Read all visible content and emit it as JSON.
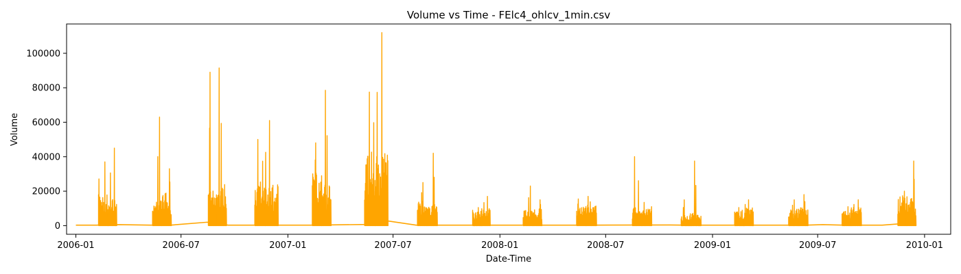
{
  "chart_data": {
    "type": "line",
    "title": "Volume vs Time - FElc4_ohlcv_1min.csv",
    "xlabel": "Date-Time",
    "ylabel": "Volume",
    "x_ticks": [
      "2006-01",
      "2006-07",
      "2007-01",
      "2007-07",
      "2008-01",
      "2008-07",
      "2009-01",
      "2009-07",
      "2010-01"
    ],
    "y_ticks": [
      0,
      20000,
      40000,
      60000,
      80000,
      100000
    ],
    "ylim": [
      -5000,
      117000
    ],
    "xlim": [
      "2005-12-16",
      "2010-02-15"
    ],
    "grid": false,
    "line_color": "#ffa500",
    "series": [
      {
        "baseline": [
          [
            "2006-01-01",
            300
          ],
          [
            "2006-02-05",
            300
          ],
          [
            "2006-03-16",
            600
          ],
          [
            "2006-05-12",
            300
          ],
          [
            "2006-06-13",
            300
          ],
          [
            "2006-08-15",
            2000
          ],
          [
            "2006-09-20",
            300
          ],
          [
            "2006-10-10",
            300
          ],
          [
            "2006-11-15",
            300
          ],
          [
            "2007-02-15",
            300
          ],
          [
            "2007-05-15",
            700
          ],
          [
            "2007-06-20",
            2800
          ],
          [
            "2007-08-10",
            300
          ],
          [
            "2007-09-20",
            300
          ],
          [
            "2008-06-01",
            300
          ],
          [
            "2008-10-20",
            400
          ],
          [
            "2008-11-15",
            300
          ],
          [
            "2009-02-10",
            300
          ],
          [
            "2009-06-10",
            300
          ],
          [
            "2009-07-10",
            600
          ],
          [
            "2009-08-15",
            300
          ],
          [
            "2009-10-20",
            300
          ],
          [
            "2009-11-20",
            1100
          ],
          [
            "2009-12-07",
            300
          ]
        ],
        "bursts": [
          {
            "start": "2006-02-09",
            "end": "2006-02-25",
            "peak": 37000,
            "level": 15000
          },
          {
            "start": "2006-02-25",
            "end": "2006-03-12",
            "peak": 45000,
            "level": 13000
          },
          {
            "start": "2006-05-13",
            "end": "2006-05-28",
            "peak": 63000,
            "level": 12000
          },
          {
            "start": "2006-05-28",
            "end": "2006-06-14",
            "peak": 33000,
            "level": 16000
          },
          {
            "start": "2006-08-17",
            "end": "2006-08-31",
            "peak": 89000,
            "level": 17000
          },
          {
            "start": "2006-09-01",
            "end": "2006-09-17",
            "peak": 91500,
            "level": 20000
          },
          {
            "start": "2006-11-05",
            "end": "2006-11-23",
            "peak": 50000,
            "level": 22000
          },
          {
            "start": "2006-11-23",
            "end": "2006-12-15",
            "peak": 61000,
            "level": 20000
          },
          {
            "start": "2007-02-12",
            "end": "2007-02-28",
            "peak": 48000,
            "level": 26000
          },
          {
            "start": "2007-02-28",
            "end": "2007-03-16",
            "peak": 78500,
            "level": 20000
          },
          {
            "start": "2007-05-13",
            "end": "2007-05-31",
            "peak": 77500,
            "level": 38000
          },
          {
            "start": "2007-05-31",
            "end": "2007-06-22",
            "peak": 112000,
            "level": 35000
          },
          {
            "start": "2007-08-12",
            "end": "2007-08-28",
            "peak": 25000,
            "level": 12000
          },
          {
            "start": "2007-08-28",
            "end": "2007-09-15",
            "peak": 42000,
            "level": 11000
          },
          {
            "start": "2007-11-15",
            "end": "2007-11-30",
            "peak": 10500,
            "level": 7000
          },
          {
            "start": "2007-11-30",
            "end": "2007-12-15",
            "peak": 17000,
            "level": 9000
          },
          {
            "start": "2008-02-10",
            "end": "2008-02-26",
            "peak": 23000,
            "level": 8000
          },
          {
            "start": "2008-02-26",
            "end": "2008-03-13",
            "peak": 15000,
            "level": 9000
          },
          {
            "start": "2008-05-12",
            "end": "2008-05-28",
            "peak": 15500,
            "level": 9000
          },
          {
            "start": "2008-05-28",
            "end": "2008-06-15",
            "peak": 17000,
            "level": 10000
          },
          {
            "start": "2008-08-16",
            "end": "2008-08-31",
            "peak": 40000,
            "level": 9000
          },
          {
            "start": "2008-08-31",
            "end": "2008-09-18",
            "peak": 13500,
            "level": 8000
          },
          {
            "start": "2008-11-08",
            "end": "2008-11-23",
            "peak": 15000,
            "level": 5000
          },
          {
            "start": "2008-11-23",
            "end": "2008-12-12",
            "peak": 37500,
            "level": 6000
          },
          {
            "start": "2009-02-08",
            "end": "2009-02-24",
            "peak": 10500,
            "level": 7000
          },
          {
            "start": "2009-02-24",
            "end": "2009-03-12",
            "peak": 15000,
            "level": 9000
          },
          {
            "start": "2009-05-12",
            "end": "2009-05-29",
            "peak": 15000,
            "level": 8000
          },
          {
            "start": "2009-05-29",
            "end": "2009-06-14",
            "peak": 18000,
            "level": 9000
          },
          {
            "start": "2009-08-12",
            "end": "2009-08-28",
            "peak": 11000,
            "level": 7000
          },
          {
            "start": "2009-08-28",
            "end": "2009-09-14",
            "peak": 15000,
            "level": 9000
          },
          {
            "start": "2009-11-16",
            "end": "2009-12-01",
            "peak": 20000,
            "level": 14000
          },
          {
            "start": "2009-12-01",
            "end": "2009-12-17",
            "peak": 37500,
            "level": 14000
          }
        ]
      }
    ]
  }
}
